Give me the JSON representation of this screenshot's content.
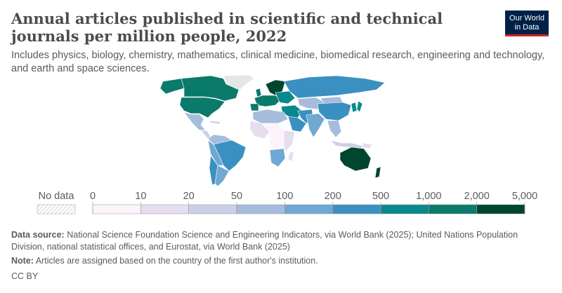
{
  "header": {
    "title": "Annual articles published in scientific and technical journals per million people, 2022",
    "subtitle": "Includes physics, biology, chemistry, mathematics, clinical medicine, biomedical research, engineering and technology, and earth and space sciences.",
    "logo_line1": "Our World",
    "logo_line2": "in Data"
  },
  "legend": {
    "no_data_label": "No data",
    "tick_labels": [
      "0",
      "10",
      "20",
      "50",
      "100",
      "200",
      "500",
      "1,000",
      "2,000",
      "5,000"
    ],
    "bin_colors": [
      "#fbf5fb",
      "#e6ddef",
      "#ccd0e6",
      "#a5bcdc",
      "#6fa8d2",
      "#3a90c0",
      "#08898c",
      "#0a7a6a",
      "#00452f"
    ]
  },
  "map_colors": {
    "ocean": "#ffffff",
    "border": "#ffffff",
    "no_data": "#e6e6e6"
  },
  "footer": {
    "source_label": "Data source:",
    "source_text": "National Science Foundation Science and Engineering Indicators, via World Bank (2025); United Nations Population Division, national statistical offices, and Eurostat, via World Bank (2025)",
    "note_label": "Note:",
    "note_text": "Articles are assigned based on the country of the first author's institution.",
    "license": "CC BY"
  }
}
